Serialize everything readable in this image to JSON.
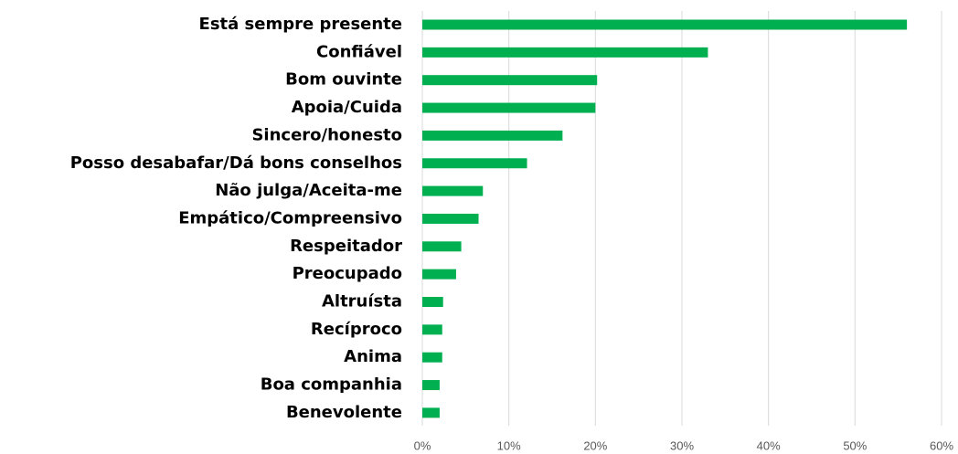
{
  "chart_data": {
    "type": "bar",
    "orientation": "horizontal",
    "categories": [
      "Está sempre presente",
      "Confiável",
      "Bom ouvinte",
      "Apoia/Cuida",
      "Sincero/honesto",
      "Posso desabafar/Dá bons conselhos",
      "Não julga/Aceita-me",
      "Empático/Compreensivo",
      "Respeitador",
      "Preocupado",
      "Altruísta",
      "Recíproco",
      "Anima",
      "Boa companhia",
      "Benevolente"
    ],
    "values": [
      56,
      33,
      20.2,
      20,
      16.2,
      12.1,
      7,
      6.5,
      4.5,
      3.9,
      2.4,
      2.3,
      2.3,
      2,
      2
    ],
    "color": "#00b050",
    "xlim": [
      0,
      60
    ],
    "xticks": [
      {
        "value": 0,
        "label": "0%"
      },
      {
        "value": 10,
        "label": "10%"
      },
      {
        "value": 20,
        "label": "20%"
      },
      {
        "value": 30,
        "label": "30%"
      },
      {
        "value": 40,
        "label": "40%"
      },
      {
        "value": 50,
        "label": "50%"
      },
      {
        "value": 60,
        "label": "60%"
      }
    ],
    "grid": true
  }
}
